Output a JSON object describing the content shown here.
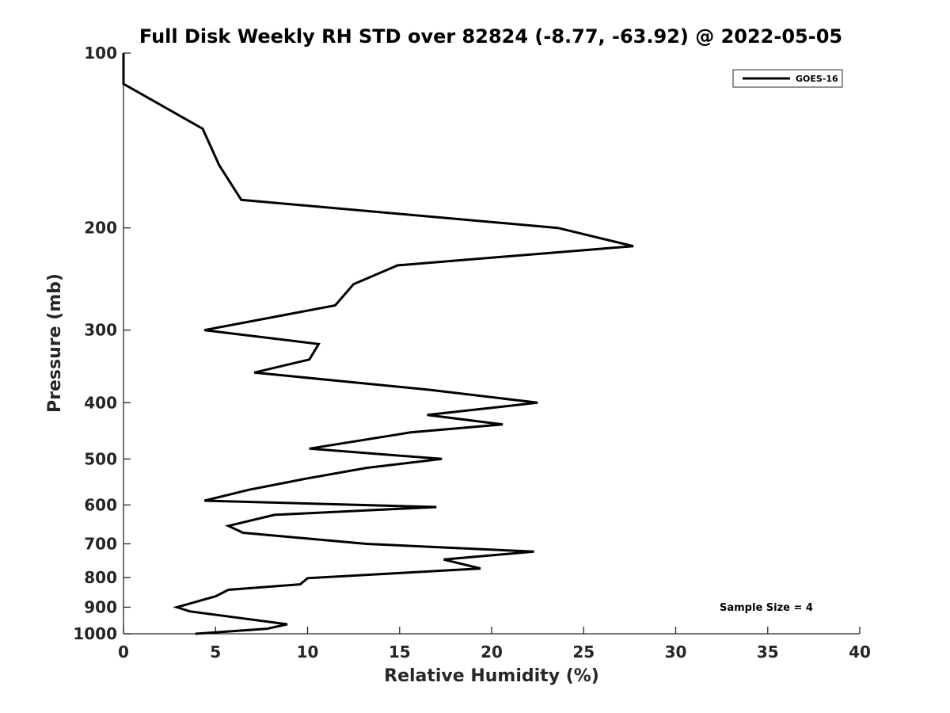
{
  "chart_data": {
    "type": "line",
    "title": "Full Disk Weekly RH STD over 82824 (-8.77, -63.92) @ 2022-05-05",
    "xlabel": "Relative Humidity (%)",
    "ylabel": "Pressure (mb)",
    "xlim": [
      0,
      40
    ],
    "ylim": [
      1000,
      100
    ],
    "yscale": "log",
    "xticks": [
      0,
      5,
      10,
      15,
      20,
      25,
      30,
      35,
      40
    ],
    "yticks": [
      100,
      200,
      300,
      400,
      500,
      600,
      700,
      800,
      900,
      1000
    ],
    "grid": false,
    "legend": {
      "position": "top-right",
      "entries": [
        "GOES-16"
      ]
    },
    "annotation": "Sample Size = 4",
    "series": [
      {
        "name": "GOES-16",
        "color": "#000000",
        "points": [
          [
            0.0,
            100
          ],
          [
            0.0,
            113
          ],
          [
            4.3,
            135
          ],
          [
            5.2,
            156
          ],
          [
            6.4,
            179
          ],
          [
            23.6,
            200
          ],
          [
            27.7,
            215
          ],
          [
            14.9,
            232
          ],
          [
            12.5,
            250
          ],
          [
            11.5,
            272
          ],
          [
            4.4,
            300
          ],
          [
            10.6,
            317
          ],
          [
            10.1,
            337
          ],
          [
            7.1,
            355
          ],
          [
            16.6,
            380
          ],
          [
            22.5,
            400
          ],
          [
            16.5,
            420
          ],
          [
            20.6,
            436
          ],
          [
            15.6,
            450
          ],
          [
            10.1,
            480
          ],
          [
            17.3,
            500
          ],
          [
            13.2,
            518
          ],
          [
            10.0,
            540
          ],
          [
            6.8,
            565
          ],
          [
            4.4,
            590
          ],
          [
            17.0,
            605
          ],
          [
            8.2,
            624
          ],
          [
            5.7,
            652
          ],
          [
            6.5,
            670
          ],
          [
            13.2,
            700
          ],
          [
            22.3,
            722
          ],
          [
            17.4,
            745
          ],
          [
            19.4,
            772
          ],
          [
            10.0,
            802
          ],
          [
            9.6,
            822
          ],
          [
            5.7,
            840
          ],
          [
            5.0,
            862
          ],
          [
            2.9,
            900
          ],
          [
            3.6,
            915
          ],
          [
            6.4,
            940
          ],
          [
            8.9,
            963
          ],
          [
            7.8,
            980
          ],
          [
            3.9,
            1000
          ]
        ]
      }
    ]
  }
}
